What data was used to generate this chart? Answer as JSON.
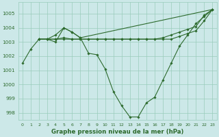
{
  "xlabel": "Graphe pression niveau de la mer (hPa)",
  "bg_color": "#cce8e8",
  "grid_color": "#99ccbb",
  "line_color": "#2d6a2d",
  "ylim": [
    997.5,
    1005.8
  ],
  "xlim": [
    -0.5,
    23.5
  ],
  "yticks": [
    998,
    999,
    1000,
    1001,
    1002,
    1003,
    1004,
    1005
  ],
  "xticks": [
    0,
    1,
    2,
    3,
    4,
    5,
    6,
    7,
    8,
    9,
    10,
    11,
    12,
    13,
    14,
    15,
    16,
    17,
    18,
    19,
    20,
    21,
    22,
    23
  ],
  "series": [
    {
      "x": [
        0,
        1,
        2,
        3,
        4,
        5,
        6,
        7,
        8,
        9,
        10,
        11,
        12,
        13,
        14,
        15,
        16,
        17,
        18,
        19,
        20,
        21,
        22,
        23
      ],
      "y": [
        1001.5,
        1002.5,
        1003.2,
        1003.2,
        1003.0,
        1004.0,
        1003.7,
        1003.3,
        1002.2,
        1002.1,
        1001.1,
        999.5,
        998.5,
        997.7,
        997.7,
        998.7,
        999.1,
        1000.3,
        1001.5,
        1002.7,
        1003.5,
        1004.3,
        1004.8,
        1005.3
      ]
    },
    {
      "x": [
        2,
        3,
        4,
        5,
        6,
        7,
        23
      ],
      "y": [
        1003.2,
        1003.2,
        1003.5,
        1004.0,
        1003.7,
        1003.3,
        1005.3
      ]
    },
    {
      "x": [
        2,
        3,
        4,
        5,
        6,
        7,
        8,
        9,
        10,
        11,
        12,
        13,
        14,
        15,
        16,
        17,
        18,
        19,
        20,
        21,
        22,
        23
      ],
      "y": [
        1003.2,
        1003.2,
        1003.2,
        1003.3,
        1003.2,
        1003.2,
        1003.2,
        1003.2,
        1003.2,
        1003.2,
        1003.2,
        1003.2,
        1003.2,
        1003.2,
        1003.2,
        1003.3,
        1003.5,
        1003.7,
        1003.9,
        1004.1,
        1004.9,
        1005.3
      ]
    },
    {
      "x": [
        2,
        3,
        4,
        5,
        6,
        7,
        8,
        9,
        10,
        11,
        12,
        13,
        14,
        15,
        16,
        17,
        18,
        19,
        20,
        21,
        22,
        23
      ],
      "y": [
        1003.2,
        1003.2,
        1003.2,
        1003.2,
        1003.2,
        1003.2,
        1003.2,
        1003.2,
        1003.2,
        1003.2,
        1003.2,
        1003.2,
        1003.2,
        1003.2,
        1003.2,
        1003.2,
        1003.2,
        1003.4,
        1003.6,
        1003.8,
        1004.5,
        1005.3
      ]
    }
  ]
}
